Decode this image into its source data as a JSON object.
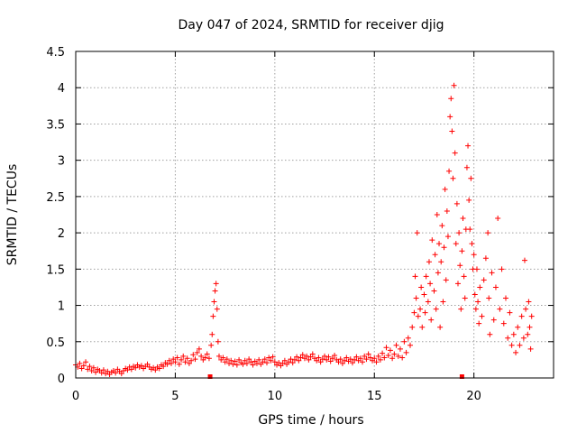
{
  "chart_data": {
    "type": "scatter",
    "title": "Day 047 of 2024, SRMTID for receiver djig",
    "xlabel": "GPS time / hours",
    "ylabel": "SRMTID / TECUs",
    "xlim": [
      0,
      24
    ],
    "ylim": [
      0,
      4.5
    ],
    "xticks": [
      0,
      5,
      10,
      15,
      20
    ],
    "xtick_labels": [
      "0",
      "5",
      "10",
      "15",
      "20"
    ],
    "yticks": [
      0,
      0.5,
      1,
      1.5,
      2,
      2.5,
      3,
      3.5,
      4,
      4.5
    ],
    "ytick_labels": [
      "0",
      "0.5",
      "1",
      "1.5",
      "2",
      "2.5",
      "3",
      "3.5",
      "4",
      "4.5"
    ],
    "grid": true,
    "marker": "plus",
    "color": "#ff0000",
    "series": [
      {
        "name": "SRMTID",
        "points": [
          [
            0.0,
            0.18
          ],
          [
            0.1,
            0.15
          ],
          [
            0.2,
            0.2
          ],
          [
            0.3,
            0.13
          ],
          [
            0.4,
            0.17
          ],
          [
            0.5,
            0.22
          ],
          [
            0.6,
            0.12
          ],
          [
            0.7,
            0.16
          ],
          [
            0.8,
            0.1
          ],
          [
            0.9,
            0.14
          ],
          [
            1.0,
            0.08
          ],
          [
            1.1,
            0.12
          ],
          [
            1.2,
            0.1
          ],
          [
            1.3,
            0.07
          ],
          [
            1.4,
            0.11
          ],
          [
            1.5,
            0.06
          ],
          [
            1.6,
            0.09
          ],
          [
            1.7,
            0.05
          ],
          [
            1.8,
            0.08
          ],
          [
            1.9,
            0.1
          ],
          [
            2.0,
            0.07
          ],
          [
            2.1,
            0.12
          ],
          [
            2.2,
            0.09
          ],
          [
            2.3,
            0.06
          ],
          [
            2.4,
            0.1
          ],
          [
            2.5,
            0.13
          ],
          [
            2.6,
            0.11
          ],
          [
            2.7,
            0.15
          ],
          [
            2.8,
            0.12
          ],
          [
            2.9,
            0.16
          ],
          [
            3.0,
            0.14
          ],
          [
            3.1,
            0.18
          ],
          [
            3.2,
            0.15
          ],
          [
            3.3,
            0.17
          ],
          [
            3.4,
            0.13
          ],
          [
            3.5,
            0.16
          ],
          [
            3.6,
            0.19
          ],
          [
            3.7,
            0.15
          ],
          [
            3.8,
            0.12
          ],
          [
            3.9,
            0.14
          ],
          [
            4.0,
            0.11
          ],
          [
            4.1,
            0.15
          ],
          [
            4.2,
            0.13
          ],
          [
            4.3,
            0.18
          ],
          [
            4.4,
            0.16
          ],
          [
            4.5,
            0.21
          ],
          [
            4.6,
            0.19
          ],
          [
            4.7,
            0.24
          ],
          [
            4.8,
            0.2
          ],
          [
            4.9,
            0.26
          ],
          [
            5.0,
            0.22
          ],
          [
            5.1,
            0.28
          ],
          [
            5.2,
            0.19
          ],
          [
            5.3,
            0.25
          ],
          [
            5.4,
            0.3
          ],
          [
            5.5,
            0.22
          ],
          [
            5.6,
            0.27
          ],
          [
            5.7,
            0.2
          ],
          [
            5.8,
            0.24
          ],
          [
            5.9,
            0.32
          ],
          [
            6.0,
            0.26
          ],
          [
            6.1,
            0.35
          ],
          [
            6.2,
            0.4
          ],
          [
            6.3,
            0.3
          ],
          [
            6.4,
            0.25
          ],
          [
            6.5,
            0.28
          ],
          [
            6.6,
            0.33
          ],
          [
            6.7,
            0.27
          ],
          [
            6.8,
            0.45
          ],
          [
            6.85,
            0.6
          ],
          [
            6.9,
            0.85
          ],
          [
            6.95,
            1.05
          ],
          [
            7.0,
            1.2
          ],
          [
            7.05,
            1.3
          ],
          [
            7.1,
            0.95
          ],
          [
            7.15,
            0.5
          ],
          [
            7.2,
            0.3
          ],
          [
            7.3,
            0.25
          ],
          [
            7.4,
            0.28
          ],
          [
            7.5,
            0.22
          ],
          [
            7.6,
            0.26
          ],
          [
            7.7,
            0.2
          ],
          [
            7.8,
            0.24
          ],
          [
            7.9,
            0.19
          ],
          [
            8.0,
            0.23
          ],
          [
            8.1,
            0.18
          ],
          [
            8.2,
            0.25
          ],
          [
            8.3,
            0.21
          ],
          [
            8.4,
            0.19
          ],
          [
            8.5,
            0.24
          ],
          [
            8.6,
            0.2
          ],
          [
            8.7,
            0.26
          ],
          [
            8.8,
            0.22
          ],
          [
            8.9,
            0.18
          ],
          [
            9.0,
            0.23
          ],
          [
            9.1,
            0.2
          ],
          [
            9.2,
            0.25
          ],
          [
            9.3,
            0.19
          ],
          [
            9.4,
            0.22
          ],
          [
            9.5,
            0.26
          ],
          [
            9.6,
            0.21
          ],
          [
            9.7,
            0.28
          ],
          [
            9.8,
            0.24
          ],
          [
            9.9,
            0.29
          ],
          [
            10.0,
            0.22
          ],
          [
            10.1,
            0.18
          ],
          [
            10.2,
            0.21
          ],
          [
            10.3,
            0.17
          ],
          [
            10.4,
            0.2
          ],
          [
            10.5,
            0.24
          ],
          [
            10.6,
            0.19
          ],
          [
            10.7,
            0.22
          ],
          [
            10.8,
            0.26
          ],
          [
            10.9,
            0.21
          ],
          [
            11.0,
            0.25
          ],
          [
            11.1,
            0.29
          ],
          [
            11.2,
            0.24
          ],
          [
            11.3,
            0.28
          ],
          [
            11.4,
            0.32
          ],
          [
            11.5,
            0.27
          ],
          [
            11.6,
            0.3
          ],
          [
            11.7,
            0.25
          ],
          [
            11.8,
            0.29
          ],
          [
            11.9,
            0.33
          ],
          [
            12.0,
            0.27
          ],
          [
            12.1,
            0.24
          ],
          [
            12.2,
            0.28
          ],
          [
            12.3,
            0.22
          ],
          [
            12.4,
            0.26
          ],
          [
            12.5,
            0.3
          ],
          [
            12.6,
            0.25
          ],
          [
            12.7,
            0.29
          ],
          [
            12.8,
            0.23
          ],
          [
            12.9,
            0.27
          ],
          [
            13.0,
            0.31
          ],
          [
            13.1,
            0.25
          ],
          [
            13.2,
            0.22
          ],
          [
            13.3,
            0.26
          ],
          [
            13.4,
            0.2
          ],
          [
            13.5,
            0.24
          ],
          [
            13.6,
            0.28
          ],
          [
            13.7,
            0.23
          ],
          [
            13.8,
            0.26
          ],
          [
            13.9,
            0.21
          ],
          [
            14.0,
            0.25
          ],
          [
            14.1,
            0.29
          ],
          [
            14.2,
            0.24
          ],
          [
            14.3,
            0.27
          ],
          [
            14.4,
            0.22
          ],
          [
            14.5,
            0.3
          ],
          [
            14.6,
            0.26
          ],
          [
            14.7,
            0.33
          ],
          [
            14.8,
            0.28
          ],
          [
            14.9,
            0.24
          ],
          [
            15.0,
            0.27
          ],
          [
            15.1,
            0.22
          ],
          [
            15.2,
            0.3
          ],
          [
            15.3,
            0.25
          ],
          [
            15.4,
            0.34
          ],
          [
            15.5,
            0.28
          ],
          [
            15.6,
            0.42
          ],
          [
            15.7,
            0.31
          ],
          [
            15.8,
            0.38
          ],
          [
            15.9,
            0.27
          ],
          [
            16.0,
            0.33
          ],
          [
            16.1,
            0.45
          ],
          [
            16.2,
            0.3
          ],
          [
            16.3,
            0.4
          ],
          [
            16.4,
            0.28
          ],
          [
            16.5,
            0.5
          ],
          [
            16.6,
            0.35
          ],
          [
            16.7,
            0.55
          ],
          [
            16.8,
            0.45
          ],
          [
            16.9,
            0.7
          ],
          [
            17.0,
            0.9
          ],
          [
            17.05,
            1.4
          ],
          [
            17.1,
            1.1
          ],
          [
            17.15,
            2.0
          ],
          [
            17.2,
            0.85
          ],
          [
            17.3,
            0.95
          ],
          [
            17.35,
            1.25
          ],
          [
            17.4,
            0.7
          ],
          [
            17.5,
            1.15
          ],
          [
            17.55,
            0.9
          ],
          [
            17.6,
            1.4
          ],
          [
            17.7,
            1.05
          ],
          [
            17.75,
            1.6
          ],
          [
            17.8,
            1.3
          ],
          [
            17.85,
            0.8
          ],
          [
            17.9,
            1.9
          ],
          [
            18.0,
            1.2
          ],
          [
            18.05,
            1.7
          ],
          [
            18.1,
            0.95
          ],
          [
            18.15,
            2.25
          ],
          [
            18.2,
            1.45
          ],
          [
            18.25,
            1.85
          ],
          [
            18.3,
            0.7
          ],
          [
            18.35,
            1.6
          ],
          [
            18.4,
            2.1
          ],
          [
            18.45,
            1.05
          ],
          [
            18.5,
            1.8
          ],
          [
            18.55,
            2.6
          ],
          [
            18.6,
            1.35
          ],
          [
            18.65,
            2.3
          ],
          [
            18.7,
            1.95
          ],
          [
            18.75,
            2.85
          ],
          [
            18.8,
            3.6
          ],
          [
            18.85,
            3.85
          ],
          [
            18.9,
            3.4
          ],
          [
            18.95,
            2.75
          ],
          [
            19.0,
            4.03
          ],
          [
            19.05,
            3.1
          ],
          [
            19.1,
            1.85
          ],
          [
            19.15,
            2.4
          ],
          [
            19.2,
            1.3
          ],
          [
            19.25,
            2.0
          ],
          [
            19.3,
            1.55
          ],
          [
            19.35,
            0.95
          ],
          [
            19.4,
            1.75
          ],
          [
            19.45,
            2.2
          ],
          [
            19.5,
            1.4
          ],
          [
            19.55,
            1.1
          ],
          [
            19.6,
            2.05
          ],
          [
            19.65,
            2.9
          ],
          [
            19.7,
            3.2
          ],
          [
            19.75,
            2.45
          ],
          [
            19.8,
            2.05
          ],
          [
            19.85,
            2.75
          ],
          [
            19.9,
            1.85
          ],
          [
            19.95,
            1.5
          ],
          [
            20.0,
            1.7
          ],
          [
            20.05,
            1.15
          ],
          [
            20.1,
            0.95
          ],
          [
            20.15,
            1.5
          ],
          [
            20.2,
            1.05
          ],
          [
            20.25,
            0.75
          ],
          [
            20.3,
            1.25
          ],
          [
            20.4,
            0.85
          ],
          [
            20.5,
            1.35
          ],
          [
            20.6,
            1.65
          ],
          [
            20.7,
            2.0
          ],
          [
            20.75,
            1.1
          ],
          [
            20.8,
            0.6
          ],
          [
            20.9,
            1.45
          ],
          [
            21.0,
            0.8
          ],
          [
            21.1,
            1.25
          ],
          [
            21.2,
            2.2
          ],
          [
            21.3,
            0.95
          ],
          [
            21.4,
            1.5
          ],
          [
            21.5,
            0.75
          ],
          [
            21.6,
            1.1
          ],
          [
            21.7,
            0.55
          ],
          [
            21.8,
            0.9
          ],
          [
            21.9,
            0.45
          ],
          [
            22.0,
            0.6
          ],
          [
            22.1,
            0.35
          ],
          [
            22.2,
            0.7
          ],
          [
            22.3,
            0.45
          ],
          [
            22.4,
            0.85
          ],
          [
            22.5,
            0.55
          ],
          [
            22.55,
            1.62
          ],
          [
            22.6,
            0.95
          ],
          [
            22.7,
            0.6
          ],
          [
            22.75,
            1.05
          ],
          [
            22.8,
            0.7
          ],
          [
            22.85,
            0.4
          ],
          [
            22.9,
            0.85
          ]
        ]
      }
    ],
    "outliers": [
      [
        6.75,
        0.0
      ],
      [
        19.4,
        0.0
      ]
    ]
  }
}
